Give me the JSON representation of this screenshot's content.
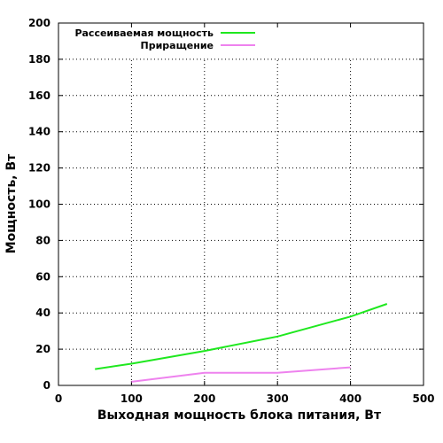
{
  "chart_data": {
    "type": "line",
    "xlabel": "Выходная мощность блока питания, Вт",
    "ylabel": "Мощность, Вт",
    "xlim": [
      0,
      500
    ],
    "ylim": [
      0,
      200
    ],
    "x_ticks": [
      0,
      100,
      200,
      300,
      400,
      500
    ],
    "y_ticks": [
      0,
      20,
      40,
      60,
      80,
      100,
      120,
      140,
      160,
      180,
      200
    ],
    "grid": true,
    "legend_position": "top-left",
    "series": [
      {
        "name": "Рассеиваемая мощность",
        "color": "#1fe81f",
        "x": [
          50,
          100,
          200,
          300,
          400,
          450
        ],
        "y": [
          9,
          12,
          19,
          27,
          38,
          45
        ]
      },
      {
        "name": "Приращение",
        "color": "#ee82ee",
        "x": [
          100,
          200,
          300,
          400
        ],
        "y": [
          2,
          7,
          7,
          10
        ]
      }
    ]
  }
}
